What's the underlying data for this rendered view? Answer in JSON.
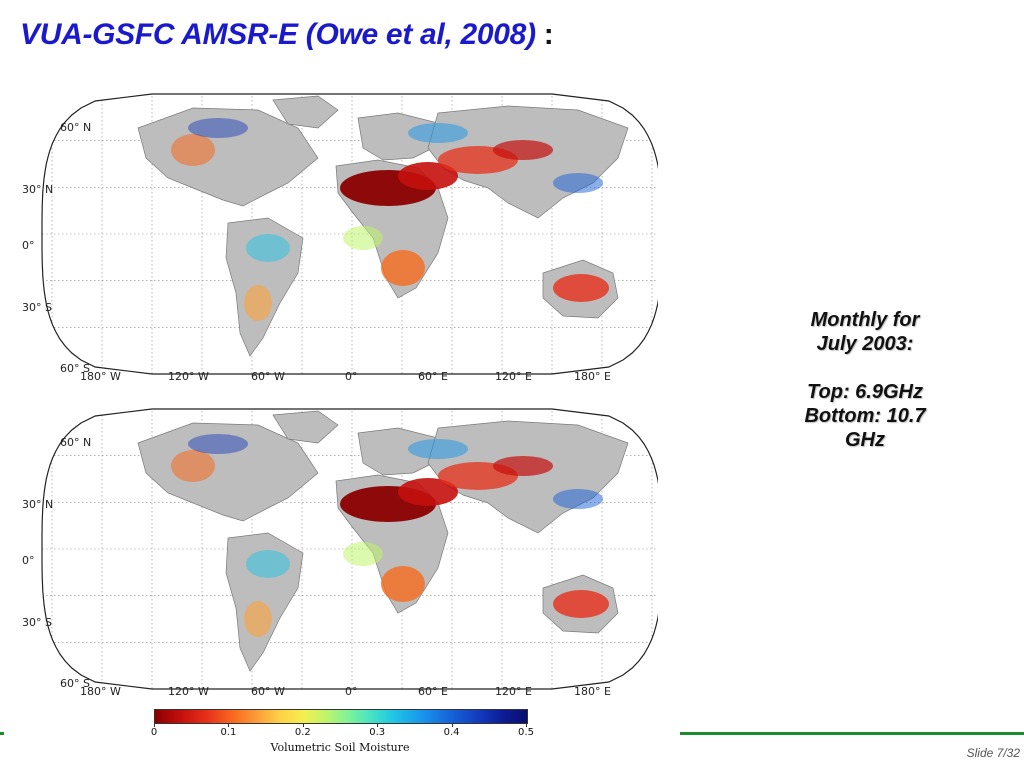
{
  "slide": {
    "title": "VUA-GSFC AMSR-E (Owe et al, 2008)",
    "title_suffix": " :",
    "slide_number": "Slide 7/32"
  },
  "caption": {
    "line1": "Monthly for",
    "line2": "July 2003:",
    "line3": "Top: 6.9GHz",
    "line4": "Bottom: 10.7",
    "line5": "GHz"
  },
  "maps": [
    {
      "id": "top",
      "frequency": "6.9GHz",
      "lat_labels": [
        "60° N",
        "30° N",
        "0°",
        "30° S",
        "60° S"
      ],
      "lon_labels": [
        "180° W",
        "120° W",
        "60° W",
        "0°",
        "60° E",
        "120° E",
        "180° E"
      ]
    },
    {
      "id": "bottom",
      "frequency": "10.7 GHz",
      "lat_labels": [
        "60° N",
        "30° N",
        "0°",
        "30° S",
        "60° S"
      ],
      "lon_labels": [
        "180° W",
        "120° W",
        "60° W",
        "0°",
        "60° E",
        "120° E",
        "180° E"
      ]
    }
  ],
  "colorbar": {
    "title": "Volumetric Soil Moisture",
    "ticks": [
      "0",
      "0.1",
      "0.2",
      "0.3",
      "0.4",
      "0.5"
    ],
    "range": [
      0,
      0.5
    ],
    "colors": {
      "dry": "#8b0000",
      "mid": "#f3f04e",
      "wet": "#0a0f6e",
      "no_data": "#bdbdbd",
      "ocean": "#ffffff"
    }
  }
}
